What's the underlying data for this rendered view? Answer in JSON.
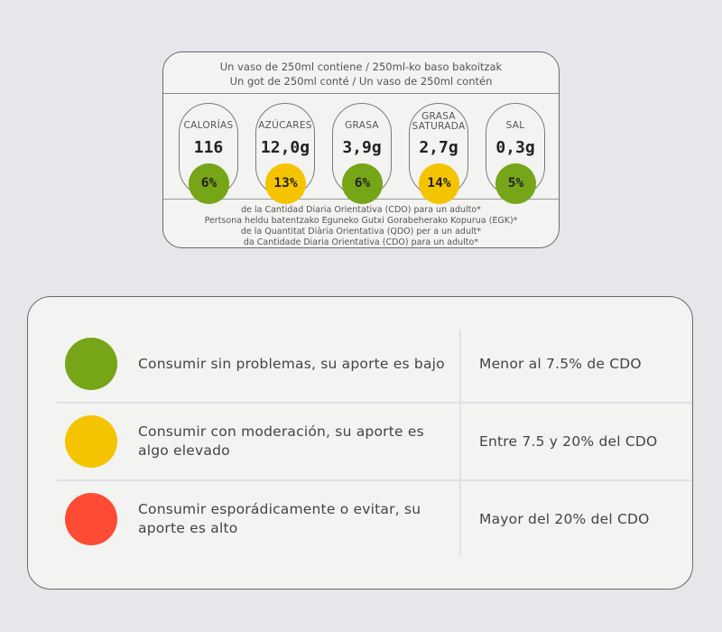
{
  "label": {
    "header_lines": [
      "Un vaso de 250ml contiene / 250ml-ko baso bakoitzak",
      "Un got de 250ml conté / Un vaso de 250ml contén"
    ],
    "nutrients": [
      {
        "name_lines": [
          "CALORÍAS"
        ],
        "value": "116",
        "percent": "6%",
        "color": "#76a517"
      },
      {
        "name_lines": [
          "AZÚCARES"
        ],
        "value": "12,0g",
        "percent": "13%",
        "color": "#f5c400"
      },
      {
        "name_lines": [
          "GRASA"
        ],
        "value": "3,9g",
        "percent": "6%",
        "color": "#76a517"
      },
      {
        "name_lines": [
          "GRASA",
          "SATURADA"
        ],
        "value": "2,7g",
        "percent": "14%",
        "color": "#f5c400"
      },
      {
        "name_lines": [
          "SAL"
        ],
        "value": "0,3g",
        "percent": "5%",
        "color": "#76a517"
      }
    ],
    "footer_lines": [
      "de la Cantidad Diaria Orientativa (CDO) para un adulto*",
      "Pertsona heldu batentzako Eguneko Gutxi Gorabeherako Kopurua (EGK)*",
      "de la Quantitat Diària Orientativa (QDO) per a un adult*",
      "da Cantidade Diaria Orientativa (CDO) para un adulto*"
    ]
  },
  "legend": {
    "rows": [
      {
        "color": "#76a517",
        "description": "Consumir sin problemas, su aporte es bajo",
        "range": "Menor al 7.5% de CDO"
      },
      {
        "color": "#f5c400",
        "description": "Consumir con moderación, su aporte es algo elevado",
        "range": "Entre 7.5 y 20% del CDO"
      },
      {
        "color": "#ff4b33",
        "description": "Consumir esporádicamente o evitar, su aporte es alto",
        "range": "Mayor del 20% del CDO"
      }
    ]
  }
}
